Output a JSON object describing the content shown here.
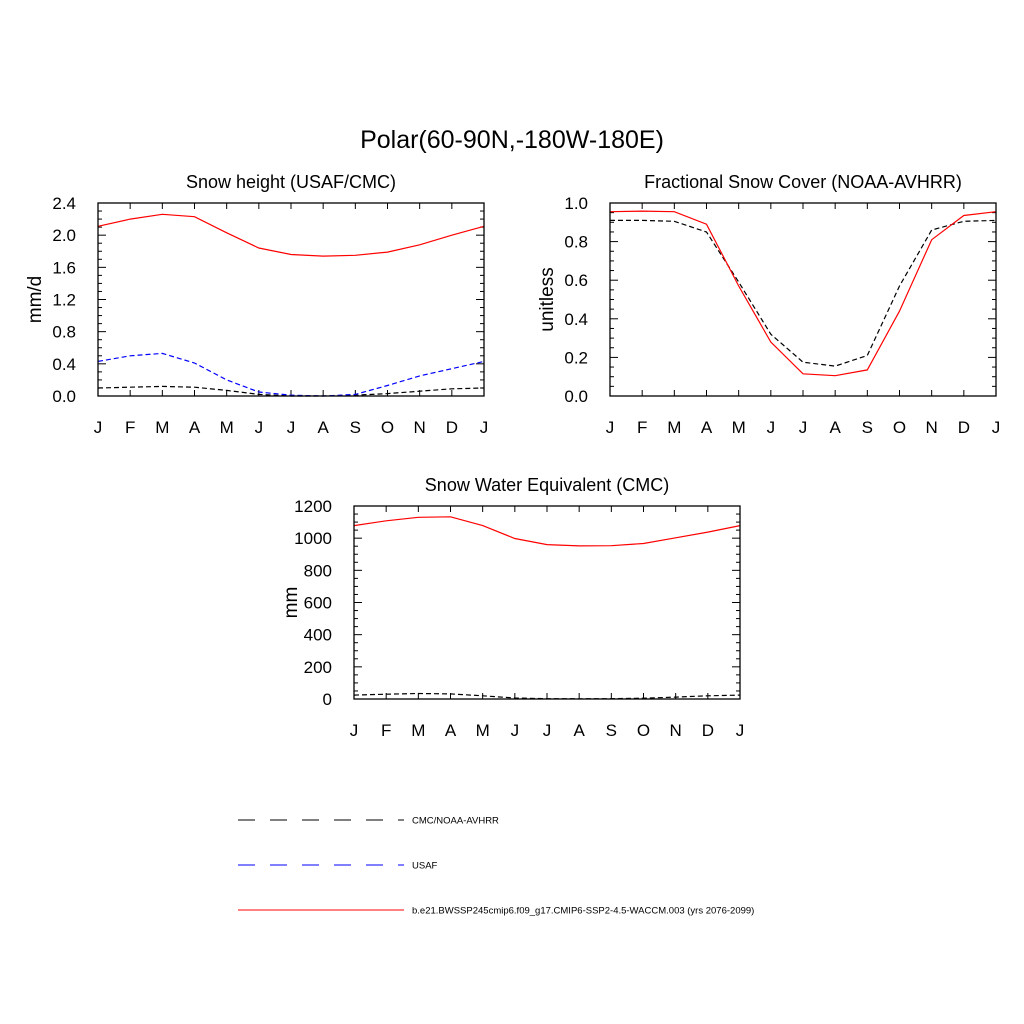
{
  "figure_title": "Polar(60-90N,-180W-180E)",
  "chart_data": [
    {
      "type": "line",
      "title": "Snow height (USAF/CMC)",
      "xlabel": "",
      "ylabel": "mm/d",
      "categories": [
        "J",
        "F",
        "M",
        "A",
        "M",
        "J",
        "J",
        "A",
        "S",
        "O",
        "N",
        "D",
        "J"
      ],
      "yticks": [
        "0.0",
        "0.4",
        "0.8",
        "1.2",
        "1.6",
        "2.0",
        "2.4"
      ],
      "ylim": [
        0,
        2.4
      ],
      "series": [
        {
          "name": "b.e21.BWSSP245cmip6.f09_g17.CMIP6-SSP2-4.5-WACCM.003 (yrs 2076-2099)",
          "color": "#ff0000",
          "style": "solid",
          "values": [
            2.11,
            2.2,
            2.26,
            2.23,
            2.03,
            1.84,
            1.76,
            1.74,
            1.75,
            1.79,
            1.88,
            2.0,
            2.11
          ]
        },
        {
          "name": "USAF",
          "color": "#0000ff",
          "style": "dashed",
          "values": [
            0.43,
            0.5,
            0.53,
            0.41,
            0.2,
            0.05,
            0.01,
            0.0,
            0.02,
            0.13,
            0.25,
            0.34,
            0.43
          ]
        },
        {
          "name": "CMC/NOAA-AVHRR",
          "color": "#000000",
          "style": "dashed",
          "values": [
            0.1,
            0.11,
            0.12,
            0.11,
            0.07,
            0.02,
            0.0,
            0.0,
            0.01,
            0.03,
            0.06,
            0.09,
            0.1
          ]
        }
      ]
    },
    {
      "type": "line",
      "title": "Fractional Snow Cover (NOAA-AVHRR)",
      "xlabel": "",
      "ylabel": "unitless",
      "categories": [
        "J",
        "F",
        "M",
        "A",
        "M",
        "J",
        "J",
        "A",
        "S",
        "O",
        "N",
        "D",
        "J"
      ],
      "yticks": [
        "0.0",
        "0.2",
        "0.4",
        "0.6",
        "0.8",
        "1.0"
      ],
      "ylim": [
        0,
        1.0
      ],
      "series": [
        {
          "name": "b.e21.BWSSP245cmip6.f09_g17.CMIP6-SSP2-4.5-WACCM.003 (yrs 2076-2099)",
          "color": "#ff0000",
          "style": "solid",
          "values": [
            0.955,
            0.958,
            0.955,
            0.89,
            0.57,
            0.28,
            0.115,
            0.105,
            0.135,
            0.44,
            0.81,
            0.935,
            0.955
          ]
        },
        {
          "name": "CMC/NOAA-AVHRR",
          "color": "#000000",
          "style": "dashed",
          "values": [
            0.91,
            0.91,
            0.905,
            0.85,
            0.59,
            0.32,
            0.175,
            0.155,
            0.21,
            0.57,
            0.86,
            0.905,
            0.91
          ]
        }
      ]
    },
    {
      "type": "line",
      "title": "Snow Water Equivalent (CMC)",
      "xlabel": "",
      "ylabel": "mm",
      "categories": [
        "J",
        "F",
        "M",
        "A",
        "M",
        "J",
        "J",
        "A",
        "S",
        "O",
        "N",
        "D",
        "J"
      ],
      "yticks": [
        "0",
        "200",
        "400",
        "600",
        "800",
        "1000",
        "1200"
      ],
      "ylim": [
        0,
        1200
      ],
      "series": [
        {
          "name": "b.e21.BWSSP245cmip6.f09_g17.CMIP6-SSP2-4.5-WACCM.003 (yrs 2076-2099)",
          "color": "#ff0000",
          "style": "solid",
          "values": [
            1078,
            1108,
            1130,
            1133,
            1078,
            998,
            960,
            952,
            953,
            967,
            1002,
            1038,
            1078
          ]
        },
        {
          "name": "CMC/NOAA-AVHRR",
          "color": "#000000",
          "style": "dashed",
          "values": [
            24,
            30,
            34,
            32,
            20,
            6,
            2,
            1,
            2,
            5,
            12,
            20,
            24
          ]
        }
      ]
    }
  ],
  "legend": [
    {
      "label": "CMC/NOAA-AVHRR",
      "color": "#000000",
      "style": "dashed"
    },
    {
      "label": "USAF",
      "color": "#0000ff",
      "style": "dashed"
    },
    {
      "label": "b.e21.BWSSP245cmip6.f09_g17.CMIP6-SSP2-4.5-WACCM.003 (yrs 2076-2099)",
      "color": "#ff0000",
      "style": "solid"
    }
  ]
}
